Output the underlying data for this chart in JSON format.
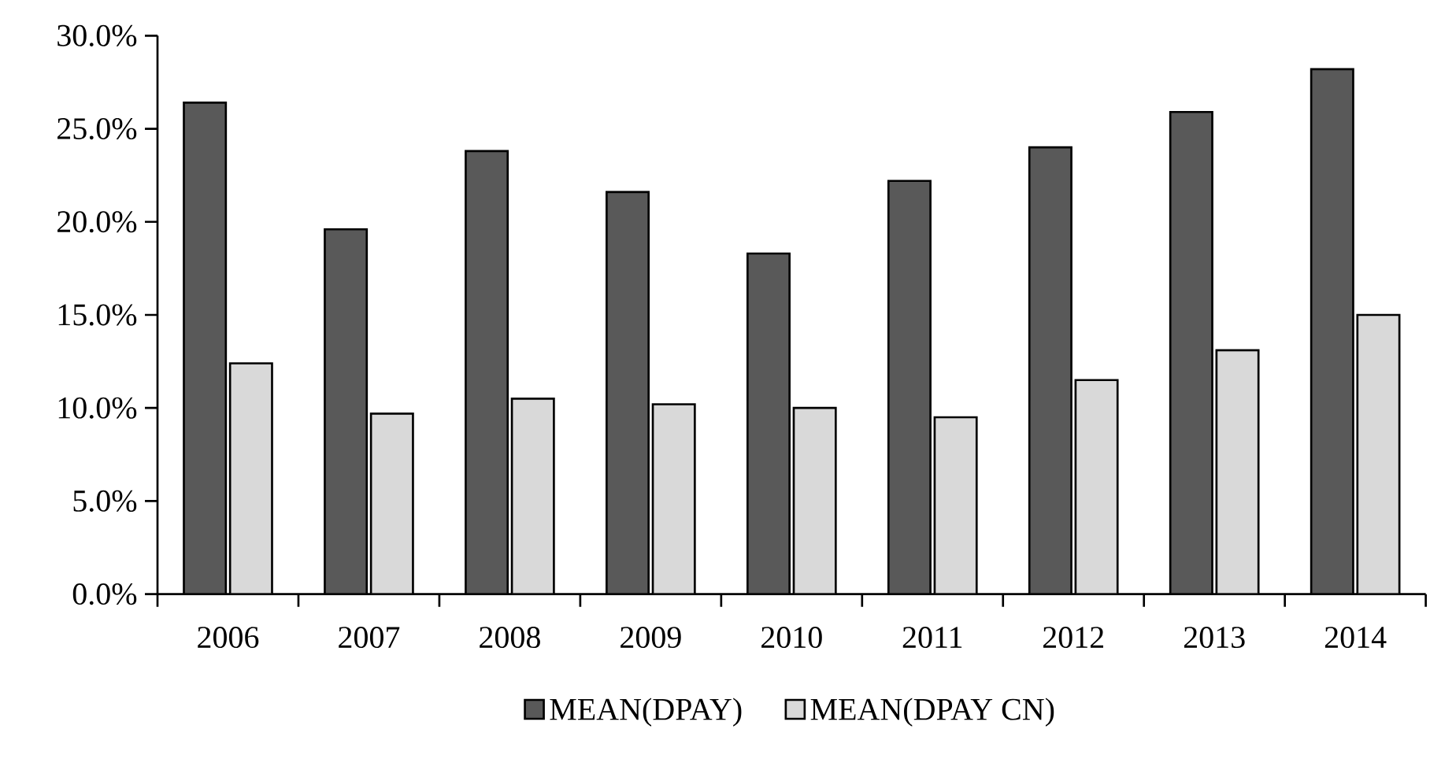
{
  "chart_data": {
    "type": "bar",
    "categories": [
      "2006",
      "2007",
      "2008",
      "2009",
      "2010",
      "2011",
      "2012",
      "2013",
      "2014"
    ],
    "series": [
      {
        "name": "MEAN(DPAY)",
        "color": "#595959",
        "values": [
          26.4,
          19.6,
          23.8,
          21.6,
          18.3,
          22.2,
          24.0,
          25.9,
          28.2
        ]
      },
      {
        "name": "MEAN(DPAY CN)",
        "color": "#d9d9d9",
        "values": [
          12.4,
          9.7,
          10.5,
          10.2,
          10.0,
          9.5,
          11.5,
          13.1,
          15.0
        ]
      }
    ],
    "ylim": [
      0,
      30
    ],
    "yticks": [
      {
        "value": 0,
        "label": "0.0%"
      },
      {
        "value": 5,
        "label": "5.0%"
      },
      {
        "value": 10,
        "label": "10.0%"
      },
      {
        "value": 15,
        "label": "15.0%"
      },
      {
        "value": 20,
        "label": "20.0%"
      },
      {
        "value": 25,
        "label": "25.0%"
      },
      {
        "value": 30,
        "label": "30.0%"
      }
    ],
    "grid": false,
    "legend": "bottom"
  }
}
